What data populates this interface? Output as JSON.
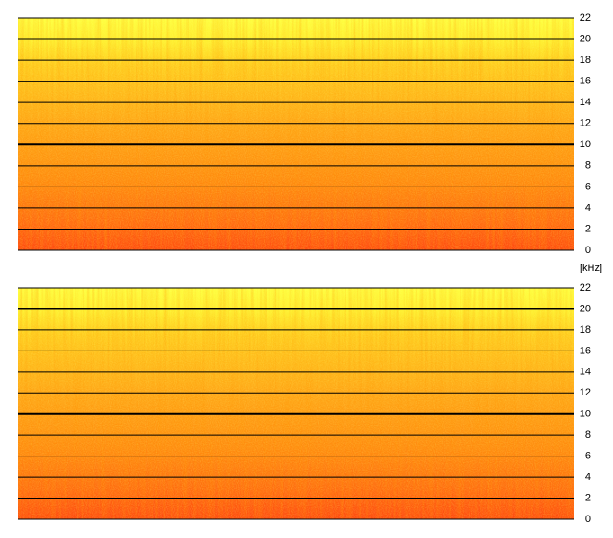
{
  "axis_label": "[kHz]",
  "chart_data": [
    {
      "type": "spectrogram",
      "ylim": [
        0,
        22
      ],
      "yticks": [
        0,
        2,
        4,
        6,
        8,
        10,
        12,
        14,
        16,
        18,
        20,
        22
      ],
      "grid": true,
      "major_gridlines": [
        10,
        20
      ]
    },
    {
      "type": "spectrogram",
      "ylim": [
        0,
        22
      ],
      "yticks": [
        0,
        2,
        4,
        6,
        8,
        10,
        12,
        14,
        16,
        18,
        20,
        22
      ],
      "grid": true,
      "major_gridlines": [
        10,
        20
      ]
    }
  ]
}
